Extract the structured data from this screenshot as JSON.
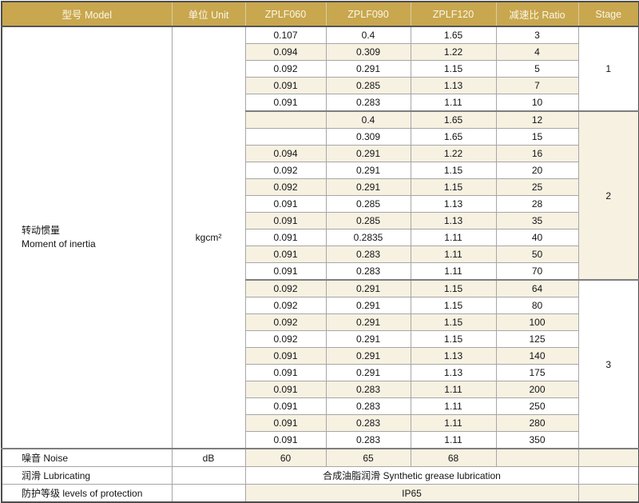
{
  "table": {
    "header": {
      "model": "型号 Model",
      "unit": "单位 Unit",
      "col_zplf060": "ZPLF060",
      "col_zplf090": "ZPLF090",
      "col_zplf120": "ZPLF120",
      "ratio": "减速比 Ratio",
      "stage": "Stage"
    },
    "inertia": {
      "label_cn": "转动惯量",
      "label_en": "Moment of inertia",
      "unit": "kgcm²",
      "stages": [
        {
          "stage": "1",
          "rows": [
            [
              "0.107",
              "0.4",
              "1.65",
              "3"
            ],
            [
              "0.094",
              "0.309",
              "1.22",
              "4"
            ],
            [
              "0.092",
              "0.291",
              "1.15",
              "5"
            ],
            [
              "0.091",
              "0.285",
              "1.13",
              "7"
            ],
            [
              "0.091",
              "0.283",
              "1.11",
              "10"
            ]
          ]
        },
        {
          "stage": "2",
          "rows": [
            [
              "",
              "0.4",
              "1.65",
              "12"
            ],
            [
              "",
              "0.309",
              "1.65",
              "15"
            ],
            [
              "0.094",
              "0.291",
              "1.22",
              "16"
            ],
            [
              "0.092",
              "0.291",
              "1.15",
              "20"
            ],
            [
              "0.092",
              "0.291",
              "1.15",
              "25"
            ],
            [
              "0.091",
              "0.285",
              "1.13",
              "28"
            ],
            [
              "0.091",
              "0.285",
              "1.13",
              "35"
            ],
            [
              "0.091",
              "0.2835",
              "1.11",
              "40"
            ],
            [
              "0.091",
              "0.283",
              "1.11",
              "50"
            ],
            [
              "0.091",
              "0.283",
              "1.11",
              "70"
            ]
          ]
        },
        {
          "stage": "3",
          "rows": [
            [
              "0.092",
              "0.291",
              "1.15",
              "64"
            ],
            [
              "0.092",
              "0.291",
              "1.15",
              "80"
            ],
            [
              "0.092",
              "0.291",
              "1.15",
              "100"
            ],
            [
              "0.092",
              "0.291",
              "1.15",
              "125"
            ],
            [
              "0.091",
              "0.291",
              "1.13",
              "140"
            ],
            [
              "0.091",
              "0.291",
              "1.13",
              "175"
            ],
            [
              "0.091",
              "0.283",
              "1.11",
              "200"
            ],
            [
              "0.091",
              "0.283",
              "1.11",
              "250"
            ],
            [
              "0.091",
              "0.283",
              "1.11",
              "280"
            ],
            [
              "0.091",
              "0.283",
              "1.11",
              "350"
            ]
          ]
        }
      ]
    },
    "noise": {
      "label": "噪音 Noise",
      "unit": "dB",
      "values": [
        "60",
        "65",
        "68"
      ]
    },
    "lubricating": {
      "label": "润滑 Lubricating",
      "value": "合成油脂润滑 Synthetic grease lubrication"
    },
    "protection": {
      "label": "防护等级 levels of protection",
      "value": "IP65"
    }
  },
  "colors": {
    "header_bg": "#c8a74e",
    "header_text": "#faf6e8",
    "row_alt_bg": "#f7f1e2",
    "grid_line": "#a6a6a6",
    "section_line": "#7e7e7e",
    "outer_border": "#4d4d4d",
    "text": "#141414"
  }
}
